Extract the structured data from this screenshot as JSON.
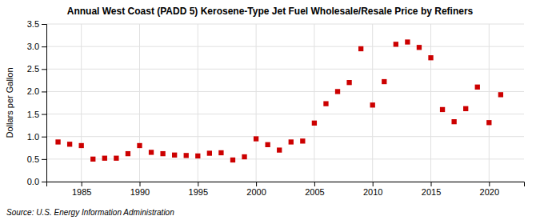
{
  "chart_data": {
    "type": "scatter",
    "title": "Annual West Coast (PADD 5) Kerosene-Type Jet Fuel Wholesale/Resale Price by Refiners",
    "ylabel": "Dollars per Gallon",
    "source": "Source: U.S. Energy Information Administration",
    "x": [
      1983,
      1984,
      1985,
      1986,
      1987,
      1988,
      1989,
      1990,
      1991,
      1992,
      1993,
      1994,
      1995,
      1996,
      1997,
      1998,
      1999,
      2000,
      2001,
      2002,
      2003,
      2004,
      2005,
      2006,
      2007,
      2008,
      2009,
      2010,
      2011,
      2012,
      2013,
      2014,
      2015,
      2016,
      2017,
      2018,
      2019,
      2020,
      2021
    ],
    "values": [
      0.88,
      0.83,
      0.8,
      0.5,
      0.52,
      0.52,
      0.62,
      0.8,
      0.65,
      0.62,
      0.59,
      0.58,
      0.57,
      0.63,
      0.64,
      0.48,
      0.55,
      0.95,
      0.82,
      0.7,
      0.88,
      0.9,
      1.3,
      1.73,
      2.0,
      2.2,
      2.95,
      1.7,
      2.22,
      3.05,
      3.1,
      2.98,
      2.75,
      1.6,
      1.33,
      1.62,
      2.1,
      1.31,
      1.93
    ],
    "color": "#cc0000",
    "marker": "square",
    "xlim": [
      1982,
      2023
    ],
    "xticks": [
      1985,
      1990,
      1995,
      2000,
      2005,
      2010,
      2015,
      2020
    ],
    "ylim": [
      0.0,
      3.5
    ],
    "yticks": [
      {
        "value": 0.0,
        "label": "0.0"
      },
      0.5,
      {
        "value": 1.0,
        "label": "1.0"
      },
      1.5,
      {
        "value": 2.0,
        "label": "2.0"
      },
      2.5,
      {
        "value": 3.0,
        "label": "3.0"
      },
      3.5
    ],
    "grid": true
  }
}
